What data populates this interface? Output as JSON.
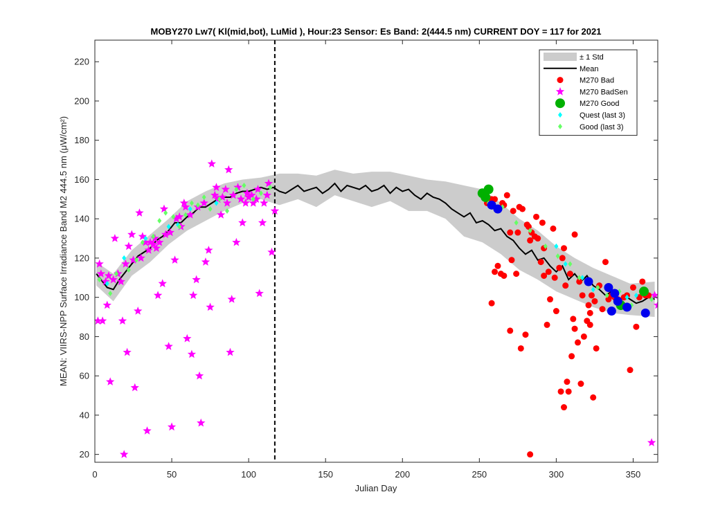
{
  "chart_data": {
    "type": "scatter",
    "title": "MOBY270   Lw7( Kl(mid,bot), LuMid ),   Hour:23 Sensor: Es Band: 2(444.5 nm)   CURRENT DOY = 117 for 2021",
    "xlabel": "Julian Day",
    "ylabel": "MEAN: VIIRS-NPP Surface Irradiance Band M2 444.5 nm (μW/cm²)",
    "xlim": [
      0,
      366
    ],
    "ylim": [
      16,
      231
    ],
    "xticks": [
      0,
      50,
      100,
      150,
      200,
      250,
      300,
      350
    ],
    "yticks": [
      20,
      40,
      60,
      80,
      100,
      120,
      140,
      160,
      180,
      200,
      220
    ],
    "current_doy": 117,
    "grid": false,
    "legend_position": "top-right",
    "colors": {
      "std_band": "#cccccc",
      "mean": "#000000",
      "bad": "#ff0000",
      "badsen": "#ff00ff",
      "good": "#00b000",
      "quest": "#00ffff",
      "good_last3": "#66ff66",
      "recent": "#0000ee"
    },
    "legend": [
      {
        "key": "std",
        "label": "± 1 Std",
        "marker": "band"
      },
      {
        "key": "mean",
        "label": "Mean",
        "marker": "line"
      },
      {
        "key": "bad",
        "label": "M270 Bad",
        "marker": "circle"
      },
      {
        "key": "badsen",
        "label": "M270 BadSen",
        "marker": "star"
      },
      {
        "key": "good",
        "label": "M270 Good",
        "marker": "bigcircle"
      },
      {
        "key": "quest",
        "label": "Quest (last 3)",
        "marker": "diamond"
      },
      {
        "key": "good_last3",
        "label": "Good (last 3)",
        "marker": "diamond"
      }
    ],
    "mean_series": {
      "x": [
        1,
        8,
        12,
        16,
        20,
        24,
        28,
        32,
        36,
        40,
        44,
        48,
        52,
        56,
        60,
        64,
        68,
        72,
        76,
        80,
        84,
        88,
        92,
        96,
        100,
        104,
        108,
        112,
        116,
        120,
        124,
        128,
        132,
        136,
        140,
        144,
        148,
        152,
        156,
        160,
        164,
        168,
        172,
        176,
        180,
        184,
        188,
        192,
        196,
        200,
        204,
        208,
        212,
        216,
        220,
        224,
        228,
        232,
        236,
        240,
        244,
        248,
        252,
        256,
        260,
        264,
        268,
        272,
        276,
        280,
        284,
        288,
        292,
        296,
        300,
        304,
        308,
        312,
        316,
        320,
        324,
        328,
        332,
        336,
        340,
        344,
        348,
        352,
        356,
        360,
        364
      ],
      "y": [
        112,
        105,
        104,
        109,
        113,
        117,
        121,
        123,
        125,
        129,
        131,
        134,
        138,
        138,
        141,
        143,
        146,
        146,
        148,
        150,
        151,
        151,
        153,
        154,
        154,
        155,
        156,
        155,
        156,
        154,
        153,
        155,
        157,
        154,
        155,
        156,
        153,
        155,
        158,
        154,
        157,
        156,
        155,
        157,
        154,
        155,
        157,
        153,
        156,
        154,
        155,
        152,
        150,
        153,
        151,
        150,
        148,
        145,
        143,
        141,
        143,
        138,
        139,
        137,
        134,
        135,
        131,
        129,
        125,
        122,
        124,
        119,
        120,
        116,
        113,
        116,
        109,
        112,
        108,
        111,
        106,
        104,
        101,
        103,
        98,
        101,
        99,
        97,
        98,
        100,
        99
      ]
    },
    "std_band": {
      "x": [
        1,
        12,
        24,
        36,
        48,
        60,
        72,
        84,
        96,
        108,
        120,
        132,
        144,
        156,
        168,
        180,
        192,
        204,
        216,
        228,
        240,
        252,
        264,
        276,
        288,
        300,
        312,
        324,
        336,
        348,
        364
      ],
      "upper": [
        118,
        112,
        124,
        132,
        140,
        149,
        154,
        158,
        160,
        161,
        163,
        163,
        162,
        165,
        163,
        164,
        164,
        162,
        160,
        159,
        157,
        155,
        148,
        140,
        134,
        126,
        120,
        115,
        111,
        107,
        108
      ],
      "lower": [
        106,
        98,
        111,
        118,
        127,
        134,
        139,
        144,
        148,
        150,
        147,
        150,
        146,
        152,
        149,
        146,
        149,
        144,
        144,
        140,
        131,
        128,
        122,
        114,
        109,
        103,
        99,
        95,
        92,
        91,
        90
      ]
    },
    "series": [
      {
        "name": "M270 BadSen",
        "key": "badsen",
        "x": [
          2,
          3,
          4,
          5,
          7,
          8,
          9,
          10,
          12,
          13,
          15,
          17,
          18,
          19,
          20,
          21,
          22,
          24,
          25,
          26,
          28,
          29,
          30,
          31,
          33,
          34,
          35,
          36,
          38,
          39,
          40,
          41,
          42,
          44,
          45,
          46,
          48,
          49,
          50,
          52,
          53,
          55,
          56,
          58,
          59,
          60,
          62,
          63,
          64,
          66,
          67,
          68,
          69,
          71,
          72,
          74,
          75,
          76,
          78,
          79,
          80,
          82,
          83,
          85,
          86,
          87,
          88,
          89,
          90,
          92,
          93,
          95,
          96,
          98,
          99,
          100,
          102,
          103,
          105,
          106,
          107,
          109,
          110,
          112,
          113,
          115,
          117,
          362,
          364,
          366
        ],
        "y": [
          88,
          117,
          112,
          88,
          108,
          96,
          111,
          57,
          109,
          130,
          112,
          108,
          88,
          20,
          117,
          72,
          126,
          132,
          119,
          54,
          93,
          143,
          120,
          131,
          128,
          32,
          124,
          128,
          127,
          130,
          125,
          101,
          128,
          107,
          145,
          132,
          75,
          133,
          34,
          119,
          140,
          141,
          136,
          148,
          146,
          79,
          142,
          71,
          101,
          109,
          146,
          60,
          36,
          148,
          118,
          124,
          95,
          168,
          152,
          156,
          150,
          142,
          151,
          155,
          148,
          165,
          72,
          99,
          152,
          128,
          156,
          150,
          138,
          148,
          153,
          151,
          152,
          148,
          150,
          155,
          102,
          138,
          148,
          152,
          158,
          123,
          144,
          26,
          101,
          96
        ]
      },
      {
        "name": "M270 Bad",
        "key": "bad",
        "x": [
          255,
          257,
          258,
          260,
          262,
          264,
          265,
          266,
          268,
          270,
          271,
          272,
          274,
          276,
          277,
          278,
          280,
          281,
          282,
          283,
          284,
          286,
          287,
          288,
          290,
          291,
          292,
          294,
          295,
          296,
          298,
          299,
          300,
          302,
          303,
          304,
          305,
          306,
          307,
          308,
          309,
          310,
          311,
          312,
          314,
          315,
          316,
          317,
          318,
          320,
          321,
          322,
          323,
          324,
          325,
          326,
          328,
          330,
          332,
          334,
          336,
          338,
          340,
          342,
          344,
          346,
          348,
          350,
          352,
          354,
          356,
          358,
          360,
          258,
          260,
          262,
          266,
          270,
          275,
          283,
          292,
          305,
          312,
          322
        ],
        "y": [
          148,
          150,
          97,
          113,
          145,
          112,
          148,
          111,
          152,
          83,
          119,
          144,
          112,
          146,
          74,
          145,
          81,
          137,
          136,
          20,
          133,
          131,
          141,
          130,
          118,
          138,
          125,
          86,
          113,
          99,
          135,
          110,
          93,
          115,
          52,
          120,
          44,
          106,
          57,
          52,
          112,
          70,
          89,
          84,
          77,
          108,
          56,
          101,
          80,
          88,
          96,
          92,
          101,
          49,
          98,
          74,
          106,
          94,
          118,
          99,
          101,
          100,
          99,
          97,
          100,
          101,
          63,
          105,
          85,
          100,
          108,
          101,
          101,
          150,
          150,
          116,
          147,
          133,
          133,
          129,
          111,
          125,
          132,
          86
        ]
      },
      {
        "name": "Quest (last 3)",
        "key": "quest",
        "x": [
          8,
          19,
          33,
          48,
          54,
          62,
          79,
          300,
          306,
          317,
          324,
          337,
          346,
          352
        ],
        "y": [
          107,
          120,
          130,
          136,
          137,
          145,
          148,
          126,
          117,
          110,
          104,
          101,
          100,
          101
        ]
      },
      {
        "name": "Good (last 3)",
        "key": "good_last3",
        "x": [
          3,
          10,
          14,
          22,
          27,
          31,
          38,
          42,
          46,
          51,
          55,
          59,
          63,
          67,
          71,
          75,
          81,
          86,
          92,
          97,
          103,
          108,
          114,
          256,
          265,
          274,
          283,
          293,
          301,
          309,
          315,
          321,
          327,
          333,
          341,
          349,
          356,
          362
        ],
        "y": [
          109,
          102,
          112,
          114,
          119,
          128,
          131,
          139,
          143,
          141,
          136,
          142,
          148,
          147,
          151,
          145,
          150,
          144,
          155,
          157,
          150,
          153,
          156,
          148,
          146,
          138,
          134,
          126,
          121,
          117,
          110,
          108,
          105,
          101,
          103,
          96,
          102,
          99
        ]
      },
      {
        "name": "M270 Good",
        "key": "good",
        "x": [
          252,
          254,
          256,
          342,
          357
        ],
        "y": [
          153,
          151,
          155,
          96,
          103
        ]
      },
      {
        "name": "",
        "key": "recent",
        "x": [
          258,
          262,
          321,
          334,
          336,
          338,
          340,
          346,
          358
        ],
        "y": [
          147,
          145,
          108,
          105,
          93,
          102,
          98,
          95,
          92
        ]
      }
    ]
  }
}
